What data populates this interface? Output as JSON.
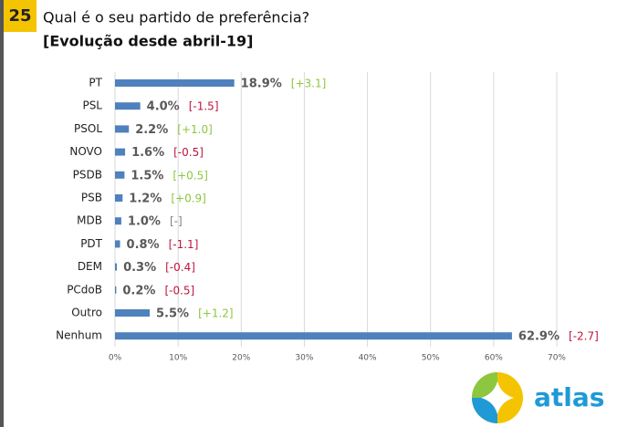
{
  "slide_number": "25",
  "logo": "atlas",
  "chart_data": {
    "type": "hbar",
    "title": "Qual é o seu partido de preferência?",
    "subtitle": "[Evolução desde abril-19]",
    "categories": [
      "PT",
      "PSL",
      "PSOL",
      "NOVO",
      "PSDB",
      "PSB",
      "MDB",
      "PDT",
      "DEM",
      "PCdoB",
      "Outro",
      "Nenhum"
    ],
    "values": [
      18.9,
      4.0,
      2.2,
      1.6,
      1.5,
      1.2,
      1.0,
      0.8,
      0.3,
      0.2,
      5.5,
      62.9
    ],
    "value_labels": [
      "18.9%",
      "4.0%",
      "2.2%",
      "1.6%",
      "1.5%",
      "1.2%",
      "1.0%",
      "0.8%",
      "0.3%",
      "0.2%",
      "5.5%",
      "62.9%"
    ],
    "changes": [
      "[+3.1]",
      "[-1.5]",
      "[+1.0]",
      "[-0.5]",
      "[+0.5]",
      "[+0.9]",
      "[-]",
      "[-1.1]",
      "[-0.4]",
      "[-0.5]",
      "[+1.2]",
      "[-2.7]"
    ],
    "change_colors": [
      "#8dc63f",
      "#c0143c",
      "#8dc63f",
      "#c0143c",
      "#8dc63f",
      "#8dc63f",
      "#808080",
      "#c0143c",
      "#c0143c",
      "#c0143c",
      "#8dc63f",
      "#c0143c"
    ],
    "color": "#4f81bd",
    "xlim": [
      0,
      70
    ],
    "xticks": [
      {
        "value": 0,
        "label": "0%"
      },
      {
        "value": 10,
        "label": "10%"
      },
      {
        "value": 20,
        "label": "20%"
      },
      {
        "value": 30,
        "label": "30%"
      },
      {
        "value": 40,
        "label": "40%"
      },
      {
        "value": 50,
        "label": "50%"
      },
      {
        "value": 60,
        "label": "60%"
      },
      {
        "value": 70,
        "label": "70%"
      }
    ],
    "grid": true
  }
}
